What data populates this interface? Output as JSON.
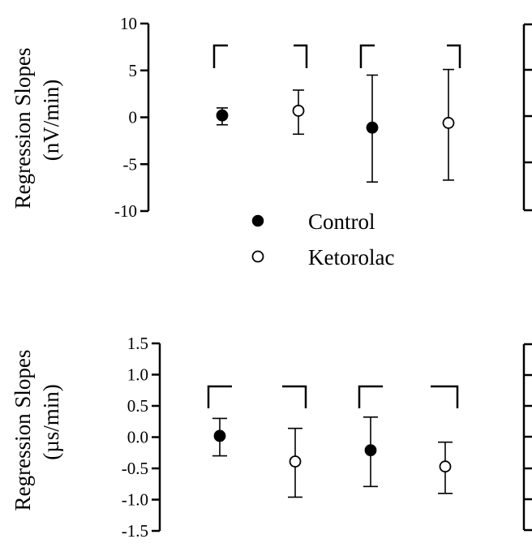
{
  "chart_data": [
    {
      "type": "scatter",
      "subtype": "mean-with-error-bars",
      "ylabel_line1": "Regression Slopes",
      "ylabel_line2": "(nV/min)",
      "ylim": [
        -10,
        10
      ],
      "yticks": [
        10,
        5,
        0,
        -5,
        -10
      ],
      "ytick_labels": [
        "10",
        "5",
        "0",
        "-5",
        "-10"
      ],
      "grid": false,
      "points": [
        {
          "series": "Control",
          "y": 0.2,
          "low": -0.8,
          "high": 1.0
        },
        {
          "series": "Ketorolac",
          "y": 0.7,
          "low": -1.8,
          "high": 2.9
        },
        {
          "series": "Control",
          "y": -1.1,
          "low": -6.9,
          "high": 4.5
        },
        {
          "series": "Ketorolac",
          "y": -0.6,
          "low": -6.7,
          "high": 5.1
        }
      ]
    },
    {
      "type": "scatter",
      "subtype": "mean-with-error-bars",
      "ylabel_line1": "Regression Slopes",
      "ylabel_line2": "(µs/min)",
      "ylim": [
        -1.5,
        1.5
      ],
      "yticks": [
        1.5,
        1.0,
        0.5,
        0.0,
        -0.5,
        -1.0,
        -1.5
      ],
      "ytick_labels": [
        "1.5",
        "1.0",
        "0.5",
        "0.0",
        "-0.5",
        "-1.0",
        "-1.5"
      ],
      "grid": false,
      "points": [
        {
          "series": "Control",
          "y": 0.02,
          "low": -0.3,
          "high": 0.3
        },
        {
          "series": "Ketorolac",
          "y": -0.39,
          "low": -0.96,
          "high": 0.14
        },
        {
          "series": "Control",
          "y": -0.21,
          "low": -0.79,
          "high": 0.32
        },
        {
          "series": "Ketorolac",
          "y": -0.47,
          "low": -0.9,
          "high": -0.08
        }
      ]
    }
  ],
  "legend": {
    "placement": "below-top-panel",
    "items": [
      {
        "label": "Control",
        "marker": "filled-circle",
        "color": "#000000"
      },
      {
        "label": "Ketorolac",
        "marker": "open-circle",
        "color": "#000000"
      }
    ]
  },
  "colors": {
    "ink": "#000000",
    "background": "#ffffff"
  }
}
